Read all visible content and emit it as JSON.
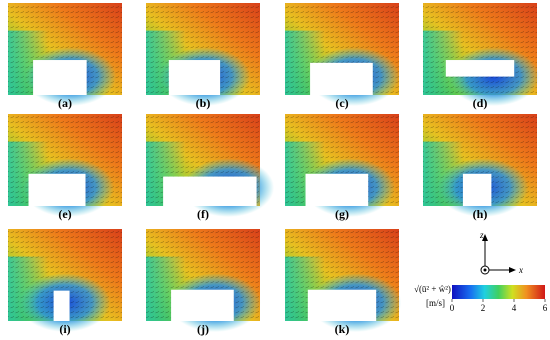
{
  "panels": [
    {
      "label": "(a)"
    },
    {
      "label": "(b)"
    },
    {
      "label": "(c)"
    },
    {
      "label": "(d)"
    },
    {
      "label": "(e)"
    },
    {
      "label": "(f)"
    },
    {
      "label": "(g)"
    },
    {
      "label": "(h)"
    },
    {
      "label": "(i)"
    },
    {
      "label": "(j)"
    },
    {
      "label": "(k)"
    }
  ],
  "axes": {
    "z": "z",
    "x": "x"
  },
  "colorbar": {
    "label": "√(ū² + ŵ²)",
    "unit": "[m/s]",
    "range": [
      0,
      6
    ],
    "ticks": [
      0,
      2,
      4,
      6
    ]
  }
}
